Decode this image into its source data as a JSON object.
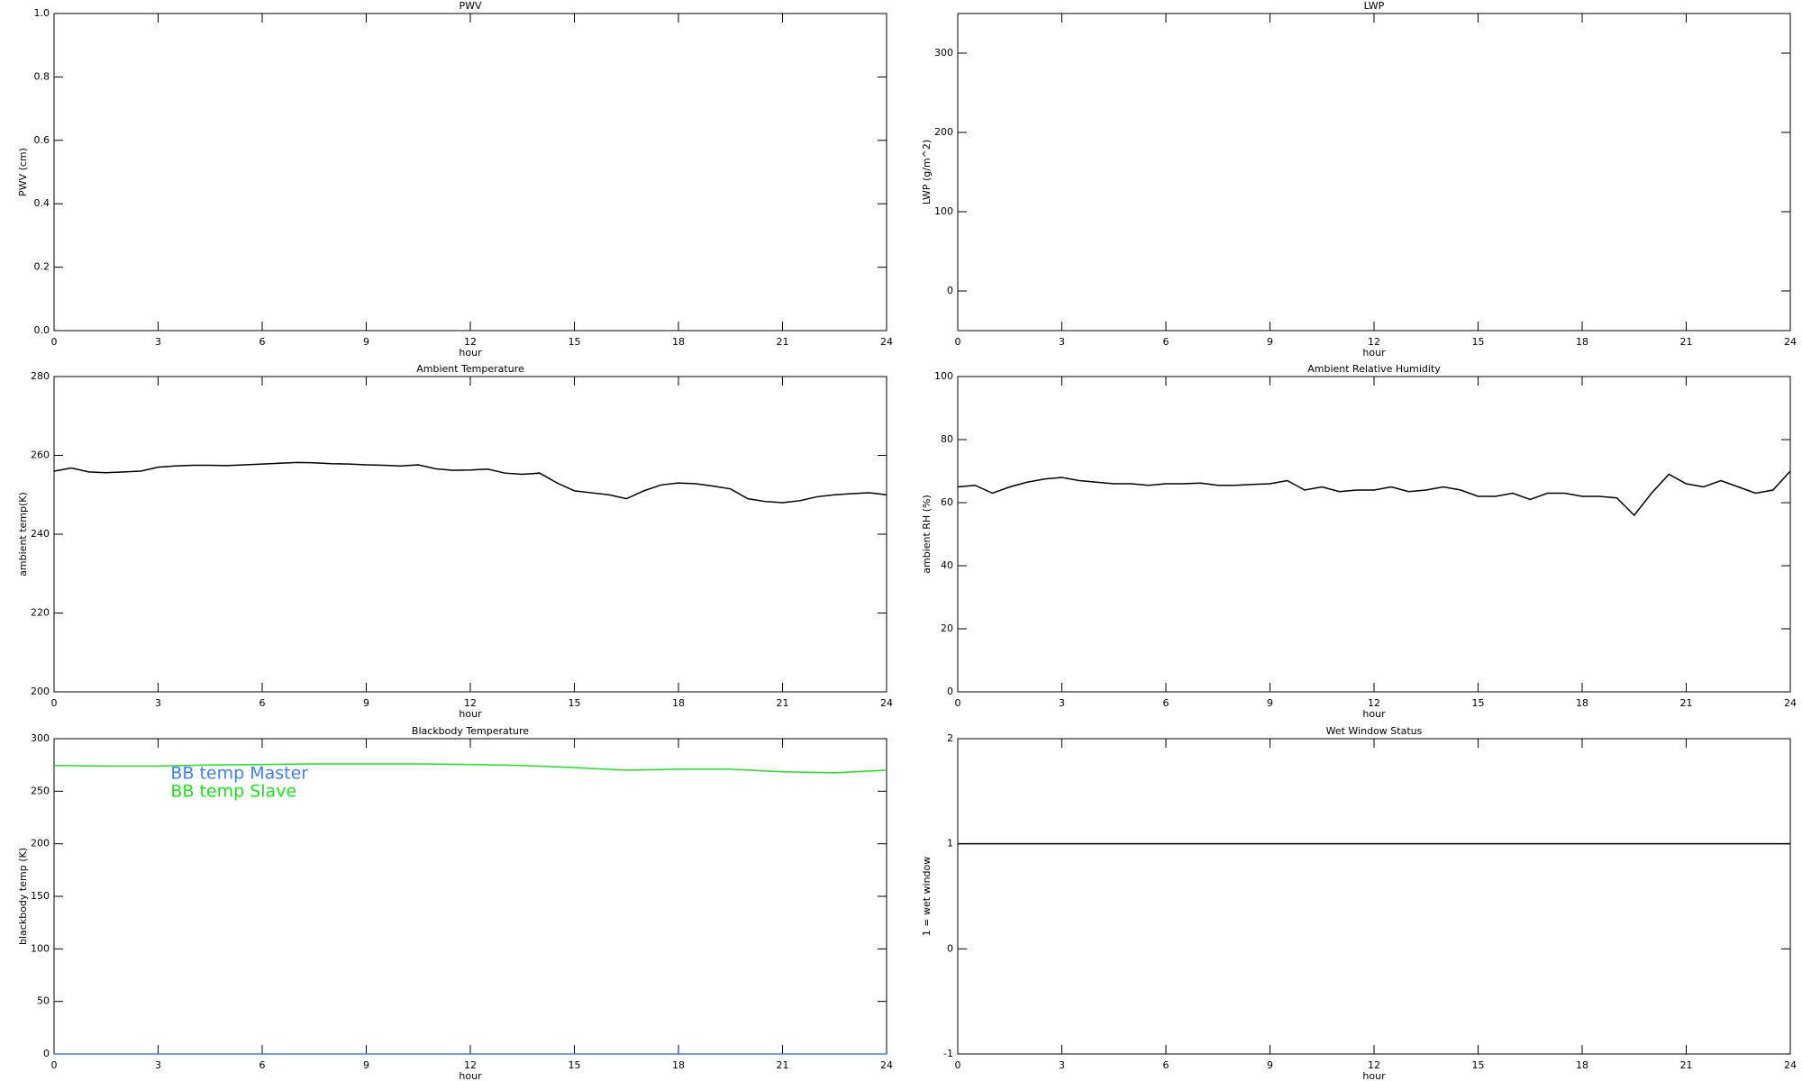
{
  "chart_data": [
    {
      "type": "line",
      "title": "PWV",
      "xlabel": "hour",
      "ylabel": "PWV (cm)",
      "xlim": [
        0,
        24
      ],
      "xticks": [
        0,
        3,
        6,
        9,
        12,
        15,
        18,
        21,
        24
      ],
      "ylim": [
        0,
        1
      ],
      "yticks": [
        {
          "value": 0,
          "label": "0.0"
        },
        0.2,
        0.4,
        0.6,
        0.8,
        {
          "value": 1,
          "label": "1.0"
        }
      ],
      "series": []
    },
    {
      "type": "line",
      "title": "LWP",
      "xlabel": "hour",
      "ylabel": "LWP (g/m^2)",
      "xlim": [
        0,
        24
      ],
      "xticks": [
        0,
        3,
        6,
        9,
        12,
        15,
        18,
        21,
        24
      ],
      "ylim": [
        -50,
        350
      ],
      "yticks": [
        0,
        100,
        200,
        300
      ],
      "series": []
    },
    {
      "type": "line",
      "title": "Ambient Temperature",
      "xlabel": "hour",
      "ylabel": "ambient temp(K)",
      "xlim": [
        0,
        24
      ],
      "xticks": [
        0,
        3,
        6,
        9,
        12,
        15,
        18,
        21,
        24
      ],
      "ylim": [
        200,
        280
      ],
      "yticks": [
        200,
        220,
        240,
        260,
        280
      ],
      "x": [
        0,
        0.5,
        1,
        1.5,
        2,
        2.5,
        3,
        3.5,
        4,
        4.5,
        5,
        5.5,
        6,
        6.5,
        7,
        7.5,
        8,
        8.5,
        9,
        9.5,
        10,
        10.5,
        11,
        11.5,
        12,
        12.5,
        13,
        13.5,
        14,
        14.5,
        15,
        15.5,
        16,
        16.5,
        17,
        17.5,
        18,
        18.5,
        19,
        19.5,
        20,
        20.5,
        21,
        21.5,
        22,
        22.5,
        23,
        23.5,
        24
      ],
      "series": [
        {
          "color": "#000000",
          "values": [
            256,
            256.8,
            255.8,
            255.6,
            255.8,
            256,
            257,
            257.3,
            257.5,
            257.5,
            257.4,
            257.6,
            257.8,
            258,
            258.2,
            258.1,
            257.9,
            257.8,
            257.6,
            257.5,
            257.3,
            257.6,
            256.6,
            256.2,
            256.3,
            256.5,
            255.5,
            255.2,
            255.5,
            253,
            251,
            250.5,
            250,
            249,
            251,
            252.5,
            253,
            252.8,
            252.2,
            251.5,
            249,
            248.3,
            248,
            248.5,
            249.5,
            250,
            250.3,
            250.5,
            250
          ]
        }
      ]
    },
    {
      "type": "line",
      "title": "Ambient Relative Humidity",
      "xlabel": "hour",
      "ylabel": "ambient RH (%)",
      "xlim": [
        0,
        24
      ],
      "xticks": [
        0,
        3,
        6,
        9,
        12,
        15,
        18,
        21,
        24
      ],
      "ylim": [
        0,
        100
      ],
      "yticks": [
        0,
        20,
        40,
        60,
        80,
        100
      ],
      "x": [
        0,
        0.5,
        1,
        1.5,
        2,
        2.5,
        3,
        3.5,
        4,
        4.5,
        5,
        5.5,
        6,
        6.5,
        7,
        7.5,
        8,
        8.5,
        9,
        9.5,
        10,
        10.5,
        11,
        11.5,
        12,
        12.5,
        13,
        13.5,
        14,
        14.5,
        15,
        15.5,
        16,
        16.5,
        17,
        17.5,
        18,
        18.5,
        19,
        19.5,
        20,
        20.5,
        21,
        21.5,
        22,
        22.5,
        23,
        23.5,
        24
      ],
      "series": [
        {
          "color": "#000000",
          "values": [
            65,
            65.5,
            63,
            65,
            66.5,
            67.5,
            68,
            67,
            66.5,
            66,
            66,
            65.5,
            66,
            66,
            66.2,
            65.5,
            65.5,
            65.8,
            66,
            67,
            64,
            65,
            63.5,
            64,
            64,
            65,
            63.5,
            64,
            65,
            64,
            62,
            62,
            63,
            61,
            63,
            63,
            62,
            62,
            61.5,
            56,
            63,
            69,
            66,
            65,
            67,
            65,
            63,
            64,
            70
          ]
        }
      ]
    },
    {
      "type": "line",
      "title": "Blackbody Temperature",
      "xlabel": "hour",
      "ylabel": "blackbody temp (K)",
      "xlim": [
        0,
        24
      ],
      "xticks": [
        0,
        3,
        6,
        9,
        12,
        15,
        18,
        21,
        24
      ],
      "ylim": [
        0,
        300
      ],
      "yticks": [
        0,
        50,
        100,
        150,
        200,
        250,
        300
      ],
      "legend": "upper left",
      "x": [
        0,
        1.5,
        3,
        4.5,
        6,
        7.5,
        9,
        10.5,
        12,
        13.5,
        15,
        16.5,
        18,
        19.5,
        21,
        22.5,
        24
      ],
      "series": [
        {
          "name": "BB temp Master",
          "color": "#3f7fff",
          "values": [
            0,
            0,
            0,
            0,
            0,
            0,
            0,
            0,
            0,
            0,
            0,
            0,
            0,
            0,
            0,
            0,
            0
          ]
        },
        {
          "name": "BB temp Slave",
          "color": "#22dd22",
          "values": [
            274.5,
            274,
            274,
            275,
            275.5,
            276,
            276,
            276,
            275.5,
            274.5,
            272.5,
            270,
            271,
            271,
            268.5,
            267.5,
            270
          ]
        }
      ]
    },
    {
      "type": "line",
      "title": "Wet Window Status",
      "xlabel": "hour",
      "ylabel": "1 = wet window",
      "xlim": [
        0,
        24
      ],
      "xticks": [
        0,
        3,
        6,
        9,
        12,
        15,
        18,
        21,
        24
      ],
      "ylim": [
        -1,
        2
      ],
      "yticks": [
        -1,
        0,
        1,
        2
      ],
      "x": [
        0,
        24
      ],
      "series": [
        {
          "color": "#000000",
          "values": [
            1,
            1
          ]
        }
      ]
    }
  ]
}
